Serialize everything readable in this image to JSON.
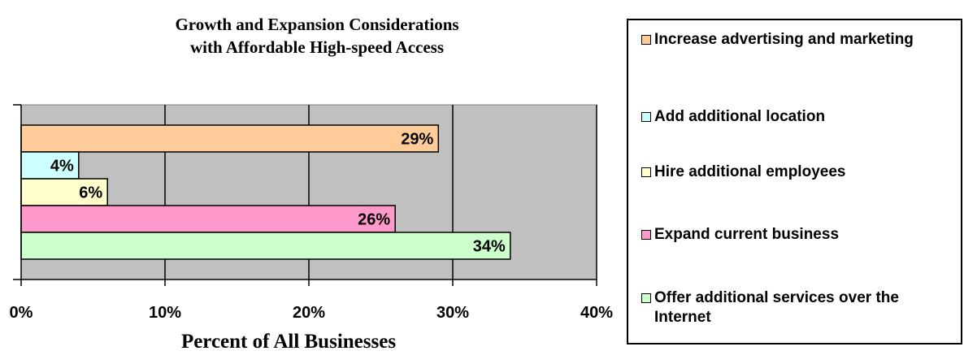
{
  "chart_data": {
    "type": "bar",
    "orientation": "horizontal",
    "title_lines": [
      "Growth and Expansion Considerations",
      "with Affordable High-speed Access"
    ],
    "xlabel": "Percent of All Businesses",
    "ylabel": "",
    "xlim": [
      0,
      40
    ],
    "xticks": [
      "0%",
      "10%",
      "20%",
      "30%",
      "40%"
    ],
    "grid": true,
    "plot_background": "#c0c0c0",
    "legend_position": "right",
    "categories": [
      "Increase advertising and marketing",
      "Add additional location",
      "Hire additional employees",
      "Expand current business",
      "Offer additional services over the Internet"
    ],
    "values": [
      29,
      4,
      6,
      26,
      34
    ],
    "value_labels": [
      "29%",
      "4%",
      "6%",
      "26%",
      "34%"
    ],
    "colors": [
      "#ffcc99",
      "#ccffff",
      "#ffffcc",
      "#ff99cc",
      "#ccffcc"
    ]
  }
}
